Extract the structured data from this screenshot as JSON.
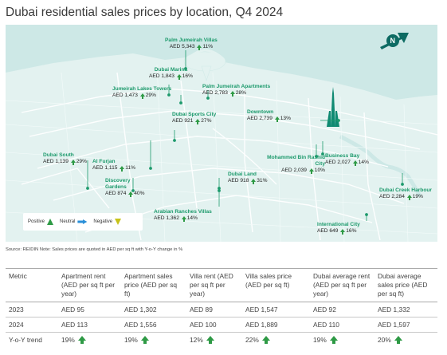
{
  "title": "Dubai residential sales prices by location, Q4 2024",
  "colors": {
    "land": "#e3f2f0",
    "water": "#cde8e6",
    "road": "#ffffff",
    "label_green": "#1d9a6c",
    "positive": "#2e9a45",
    "neutral": "#2a8fd8",
    "negative": "#c7c31a",
    "compass": "#0d6b63"
  },
  "icons": {
    "compass": "north-arrow-icon",
    "landmark": "burj-khalifa-icon"
  },
  "locations": [
    {
      "id": "palm-jumeirah-villas",
      "name": "Palm Jumeirah Villas",
      "value": "AED 5,343",
      "change": "11%"
    },
    {
      "id": "dubai-marina",
      "name": "Dubai Marina",
      "value": "AED 1,843",
      "change": "16%"
    },
    {
      "id": "palm-jumeirah-apartments",
      "name": "Palm Jumeirah Apartments",
      "value": "AED 2,783",
      "change": "28%"
    },
    {
      "id": "jumeirah-lakes-towers",
      "name": "Jumeirah Lakes Towers",
      "value": "AED 1,473",
      "change": "29%"
    },
    {
      "id": "dubai-sports-city",
      "name": "Dubai Sports City",
      "value": "AED 921",
      "change": "27%"
    },
    {
      "id": "downtown",
      "name": "Downtown",
      "value": "AED 2,739",
      "change": "13%"
    },
    {
      "id": "dubai-south",
      "name": "Dubai South",
      "value": "AED 1,139",
      "change": "29%"
    },
    {
      "id": "al-furjan",
      "name": "Al Furjan",
      "value": "AED 1,115",
      "change": "11%"
    },
    {
      "id": "mohammed-bin-rashid-city",
      "name": "Mohammed Bin Rashid City",
      "value": "AED 2,039",
      "change": "10%"
    },
    {
      "id": "business-bay",
      "name": "Business Bay",
      "value": "AED 2,027",
      "change": "14%"
    },
    {
      "id": "discovery-gardens",
      "name": "Discovery Gardens",
      "value": "AED 874",
      "change": "40%"
    },
    {
      "id": "dubai-land",
      "name": "Dubai Land",
      "value": "AED 918",
      "change": "31%"
    },
    {
      "id": "dubai-creek-harbour",
      "name": "Dubai Creek Harbour",
      "value": "AED 2,284",
      "change": "19%"
    },
    {
      "id": "arabian-ranches-villas",
      "name": "Arabian Ranches Villas",
      "value": "AED 1,362",
      "change": "14%"
    },
    {
      "id": "international-city",
      "name": "International City",
      "value": "AED 649",
      "change": "16%"
    }
  ],
  "legend": {
    "positive": "Positive",
    "neutral": "Neutral",
    "negative": "Negative"
  },
  "source": "Source: REIDIN    Note: Sales prices are quoted in AED per sq ft with Y-o-Y change in %",
  "table": {
    "headers": [
      "Metric",
      "Apartment rent (AED per sq ft per year)",
      "Apartment sales price (AED per sq ft)",
      "Villa rent (AED per sq ft per year)",
      "Villa sales price (AED per sq ft)",
      "Dubai average rent (AED per sq ft per year)",
      "Dubai average sales price (AED per sq ft)"
    ],
    "rows": [
      {
        "metric": "2023",
        "cells": [
          "AED 95",
          "AED 1,302",
          "AED 89",
          "AED 1,547",
          "AED 92",
          "AED 1,332"
        ]
      },
      {
        "metric": "2024",
        "cells": [
          "AED 113",
          "AED 1,556",
          "AED 100",
          "AED 1,889",
          "AED 110",
          "AED 1,597"
        ]
      },
      {
        "metric": "Y-o-Y trend",
        "cells": [
          "19%",
          "19%",
          "12%",
          "22%",
          "19%",
          "20%"
        ]
      }
    ]
  }
}
